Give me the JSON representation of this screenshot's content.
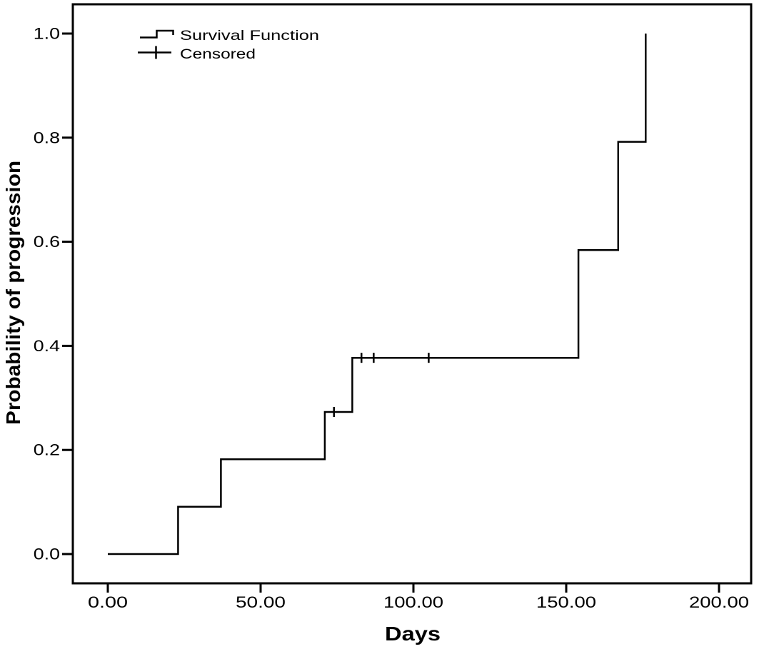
{
  "chart_data": {
    "type": "line",
    "chart_style": "kaplan-meier-step",
    "xlabel": "Days",
    "ylabel": "Probability of progression",
    "xlim": [
      0,
      200
    ],
    "ylim": [
      0.0,
      1.0
    ],
    "grid": false,
    "background_color": "#ffffff",
    "line_color": "#000000",
    "legend_position": "top-left-inside",
    "legend": [
      {
        "label": "Survival Function",
        "marker": "step-line-icon"
      },
      {
        "label": "Censored",
        "marker": "plus-icon"
      }
    ],
    "x_ticks": [
      {
        "value": 0,
        "label": "0.00"
      },
      {
        "value": 50,
        "label": "50.00"
      },
      {
        "value": 100,
        "label": "100.00"
      },
      {
        "value": 150,
        "label": "150.00"
      },
      {
        "value": 200,
        "label": "200.00"
      }
    ],
    "y_ticks": [
      {
        "value": 0.0,
        "label": "0.0"
      },
      {
        "value": 0.2,
        "label": "0.2"
      },
      {
        "value": 0.4,
        "label": "0.4"
      },
      {
        "value": 0.6,
        "label": "0.6"
      },
      {
        "value": 0.8,
        "label": "0.8"
      },
      {
        "value": 1.0,
        "label": "1.0"
      }
    ],
    "series": [
      {
        "name": "Survival Function",
        "type": "step",
        "points": [
          [
            0,
            0.0
          ],
          [
            23,
            0.0
          ],
          [
            23,
            0.091
          ],
          [
            37,
            0.091
          ],
          [
            37,
            0.182
          ],
          [
            71,
            0.182
          ],
          [
            71,
            0.273
          ],
          [
            80,
            0.273
          ],
          [
            80,
            0.377
          ],
          [
            154,
            0.377
          ],
          [
            154,
            0.584
          ],
          [
            167,
            0.584
          ],
          [
            167,
            0.792
          ],
          [
            176,
            0.792
          ],
          [
            176,
            1.0
          ]
        ]
      },
      {
        "name": "Censored",
        "type": "censor-ticks",
        "points": [
          [
            74,
            0.273
          ],
          [
            83,
            0.377
          ],
          [
            87,
            0.377
          ],
          [
            105,
            0.377
          ]
        ]
      }
    ],
    "event_days": [
      23,
      37,
      71,
      80,
      154,
      167,
      176
    ],
    "censored_days": [
      74,
      83,
      87,
      105
    ]
  }
}
